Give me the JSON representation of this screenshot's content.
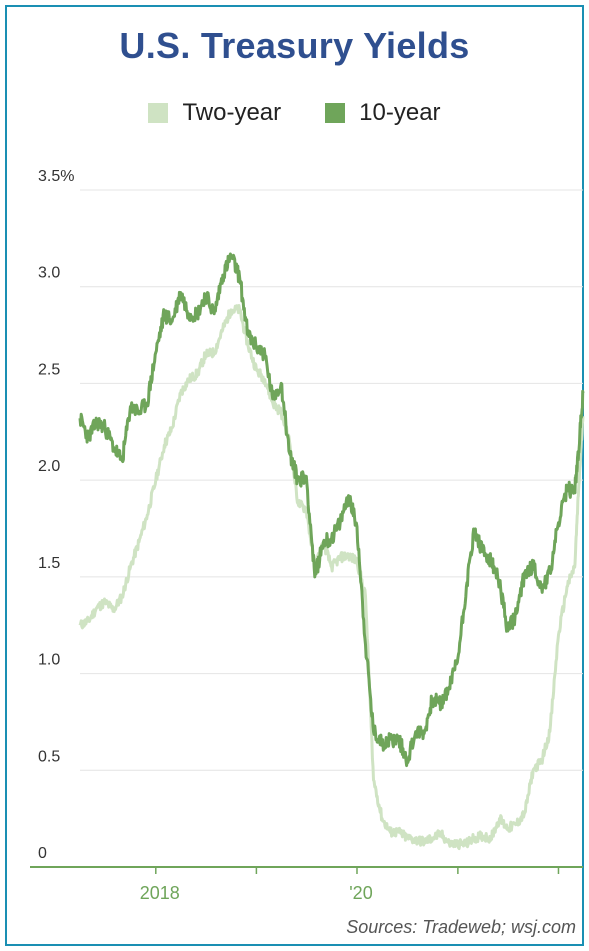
{
  "chart_data": {
    "type": "line",
    "title": "U.S. Treasury Yields",
    "xlabel": "",
    "ylabel": "",
    "x_ticks": [
      {
        "date": "2018-01-01",
        "label": "2018"
      },
      {
        "date": "2020-01-01",
        "label": "'20"
      }
    ],
    "x_range": [
      "2017-04-01",
      "2022-03-31"
    ],
    "y_ticks": [
      {
        "value": 0,
        "label": "0"
      },
      {
        "value": 0.5,
        "label": "0.5"
      },
      {
        "value": 1.0,
        "label": "1.0"
      },
      {
        "value": 1.5,
        "label": "1.5"
      },
      {
        "value": 2.0,
        "label": "2.0"
      },
      {
        "value": 2.5,
        "label": "2.5"
      },
      {
        "value": 3.0,
        "label": "3.0"
      },
      {
        "value": 3.5,
        "label": "3.5%"
      }
    ],
    "ylim": [
      0,
      3.5
    ],
    "grid": true,
    "legend_position": "top-center",
    "series": [
      {
        "name": "Two-year",
        "color": "#cfe3c3",
        "points": [
          [
            "2017-04-01",
            1.25
          ],
          [
            "2017-05-01",
            1.27
          ],
          [
            "2017-06-01",
            1.34
          ],
          [
            "2017-07-01",
            1.37
          ],
          [
            "2017-08-01",
            1.33
          ],
          [
            "2017-09-01",
            1.4
          ],
          [
            "2017-10-01",
            1.55
          ],
          [
            "2017-11-01",
            1.68
          ],
          [
            "2017-12-01",
            1.82
          ],
          [
            "2018-01-01",
            2.0
          ],
          [
            "2018-02-01",
            2.18
          ],
          [
            "2018-03-01",
            2.27
          ],
          [
            "2018-04-01",
            2.45
          ],
          [
            "2018-05-01",
            2.52
          ],
          [
            "2018-06-01",
            2.55
          ],
          [
            "2018-07-01",
            2.65
          ],
          [
            "2018-08-01",
            2.66
          ],
          [
            "2018-09-01",
            2.78
          ],
          [
            "2018-10-01",
            2.88
          ],
          [
            "2018-11-01",
            2.88
          ],
          [
            "2018-12-01",
            2.7
          ],
          [
            "2019-01-01",
            2.57
          ],
          [
            "2019-02-01",
            2.52
          ],
          [
            "2019-03-01",
            2.4
          ],
          [
            "2019-04-01",
            2.35
          ],
          [
            "2019-05-01",
            2.2
          ],
          [
            "2019-06-01",
            1.88
          ],
          [
            "2019-07-01",
            1.85
          ],
          [
            "2019-08-01",
            1.55
          ],
          [
            "2019-09-01",
            1.68
          ],
          [
            "2019-10-01",
            1.55
          ],
          [
            "2019-11-01",
            1.6
          ],
          [
            "2019-12-01",
            1.61
          ],
          [
            "2020-01-01",
            1.58
          ],
          [
            "2020-02-01",
            1.4
          ],
          [
            "2020-03-01",
            0.45
          ],
          [
            "2020-04-01",
            0.25
          ],
          [
            "2020-05-01",
            0.18
          ],
          [
            "2020-06-01",
            0.18
          ],
          [
            "2020-07-01",
            0.15
          ],
          [
            "2020-08-01",
            0.14
          ],
          [
            "2020-09-01",
            0.13
          ],
          [
            "2020-10-01",
            0.15
          ],
          [
            "2020-11-01",
            0.17
          ],
          [
            "2020-12-01",
            0.12
          ],
          [
            "2021-01-01",
            0.12
          ],
          [
            "2021-02-01",
            0.12
          ],
          [
            "2021-03-01",
            0.15
          ],
          [
            "2021-04-01",
            0.16
          ],
          [
            "2021-05-01",
            0.15
          ],
          [
            "2021-06-01",
            0.25
          ],
          [
            "2021-07-01",
            0.2
          ],
          [
            "2021-08-01",
            0.22
          ],
          [
            "2021-09-01",
            0.28
          ],
          [
            "2021-10-01",
            0.5
          ],
          [
            "2021-11-01",
            0.55
          ],
          [
            "2021-12-01",
            0.7
          ],
          [
            "2022-01-01",
            1.2
          ],
          [
            "2022-02-01",
            1.45
          ],
          [
            "2022-03-01",
            1.55
          ],
          [
            "2022-03-15",
            1.95
          ],
          [
            "2022-03-31",
            2.33
          ]
        ]
      },
      {
        "name": "10-year",
        "color": "#6fa55a",
        "points": [
          [
            "2017-04-01",
            2.32
          ],
          [
            "2017-05-01",
            2.22
          ],
          [
            "2017-06-01",
            2.3
          ],
          [
            "2017-07-01",
            2.27
          ],
          [
            "2017-08-01",
            2.17
          ],
          [
            "2017-09-01",
            2.1
          ],
          [
            "2017-10-01",
            2.38
          ],
          [
            "2017-11-01",
            2.35
          ],
          [
            "2017-12-01",
            2.4
          ],
          [
            "2018-01-01",
            2.66
          ],
          [
            "2018-02-01",
            2.86
          ],
          [
            "2018-03-01",
            2.82
          ],
          [
            "2018-04-01",
            2.97
          ],
          [
            "2018-05-01",
            2.86
          ],
          [
            "2018-06-01",
            2.86
          ],
          [
            "2018-07-01",
            2.96
          ],
          [
            "2018-08-01",
            2.86
          ],
          [
            "2018-09-01",
            3.06
          ],
          [
            "2018-10-01",
            3.16
          ],
          [
            "2018-11-01",
            3.05
          ],
          [
            "2018-12-01",
            2.75
          ],
          [
            "2019-01-01",
            2.69
          ],
          [
            "2019-02-01",
            2.65
          ],
          [
            "2019-03-01",
            2.42
          ],
          [
            "2019-04-01",
            2.5
          ],
          [
            "2019-05-01",
            2.14
          ],
          [
            "2019-06-01",
            2.0
          ],
          [
            "2019-07-01",
            2.02
          ],
          [
            "2019-08-01",
            1.5
          ],
          [
            "2019-09-01",
            1.68
          ],
          [
            "2019-10-01",
            1.7
          ],
          [
            "2019-11-01",
            1.78
          ],
          [
            "2019-12-01",
            1.92
          ],
          [
            "2020-01-01",
            1.76
          ],
          [
            "2020-02-01",
            1.15
          ],
          [
            "2020-03-01",
            0.7
          ],
          [
            "2020-04-01",
            0.64
          ],
          [
            "2020-05-01",
            0.66
          ],
          [
            "2020-06-01",
            0.66
          ],
          [
            "2020-07-01",
            0.55
          ],
          [
            "2020-08-01",
            0.7
          ],
          [
            "2020-09-01",
            0.69
          ],
          [
            "2020-10-01",
            0.87
          ],
          [
            "2020-11-01",
            0.84
          ],
          [
            "2020-12-01",
            0.93
          ],
          [
            "2021-01-01",
            1.08
          ],
          [
            "2021-02-01",
            1.45
          ],
          [
            "2021-03-01",
            1.74
          ],
          [
            "2021-04-01",
            1.63
          ],
          [
            "2021-05-01",
            1.58
          ],
          [
            "2021-06-01",
            1.47
          ],
          [
            "2021-07-01",
            1.22
          ],
          [
            "2021-08-01",
            1.31
          ],
          [
            "2021-09-01",
            1.52
          ],
          [
            "2021-10-01",
            1.56
          ],
          [
            "2021-11-01",
            1.44
          ],
          [
            "2021-12-01",
            1.52
          ],
          [
            "2022-01-01",
            1.78
          ],
          [
            "2022-02-01",
            1.95
          ],
          [
            "2022-03-01",
            1.95
          ],
          [
            "2022-03-15",
            2.15
          ],
          [
            "2022-03-31",
            2.45
          ]
        ]
      }
    ],
    "source": "Sources: Tradeweb; wsj.com"
  }
}
